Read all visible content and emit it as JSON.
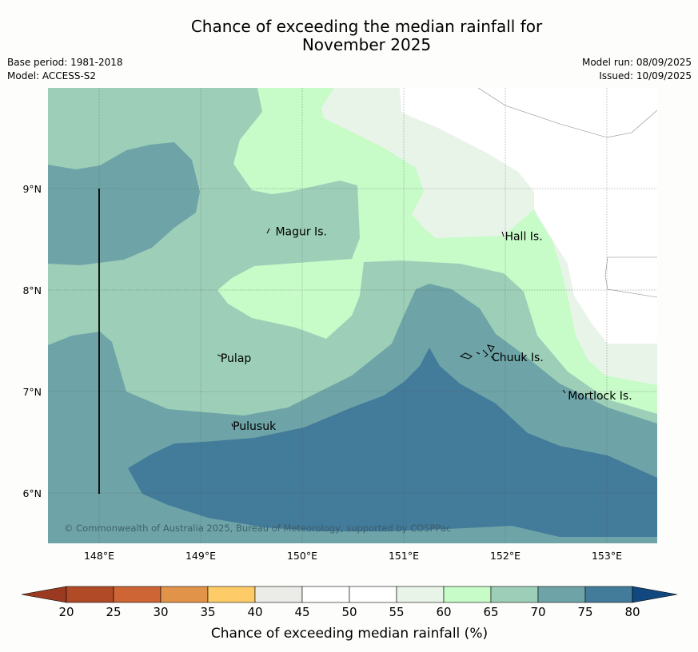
{
  "title_line1": "Chance of exceeding the median rainfall for",
  "title_line2": "November 2025",
  "base_period": "Base period: 1981-2018",
  "model": "Model: ACCESS-S2",
  "model_run": "Model run: 08/09/2025",
  "issued": "Issued: 10/09/2025",
  "copyright": "© Commonwealth of Australia 2025, Bureau of Meteorology, supported by COSPPac",
  "lon_ticks": [
    "148°E",
    "149°E",
    "150°E",
    "151°E",
    "152°E",
    "153°E"
  ],
  "lat_ticks": [
    "9°N",
    "8°N",
    "7°N",
    "6°N"
  ],
  "places": [
    {
      "name": "Magur Is.",
      "lon": 149.72,
      "lat": 8.58
    },
    {
      "name": "Hall Is.",
      "lon": 151.98,
      "lat": 8.53
    },
    {
      "name": "Pulap",
      "lon": 149.18,
      "lat": 7.33
    },
    {
      "name": "Chuuk Is.",
      "lon": 151.85,
      "lat": 7.34
    },
    {
      "name": "Mortlock Is.",
      "lon": 152.6,
      "lat": 6.96
    },
    {
      "name": "Pulusuk",
      "lon": 149.3,
      "lat": 6.66
    }
  ],
  "colorbar": {
    "label": "Chance of exceeding median rainfall (%)",
    "ticks": [
      "20",
      "25",
      "30",
      "35",
      "40",
      "45",
      "50",
      "55",
      "60",
      "65",
      "70",
      "75",
      "80"
    ],
    "colors": [
      "#b14a27",
      "#cd6535",
      "#e2934a",
      "#fdcc68",
      "#ebebe7",
      "#ffffff",
      "#ffffff",
      "#e9f4e9",
      "#c7fbc8",
      "#9dcfb8",
      "#6ea4a7",
      "#437b9a"
    ],
    "under_color": "#9b3a20",
    "over_color": "#11487f"
  }
}
